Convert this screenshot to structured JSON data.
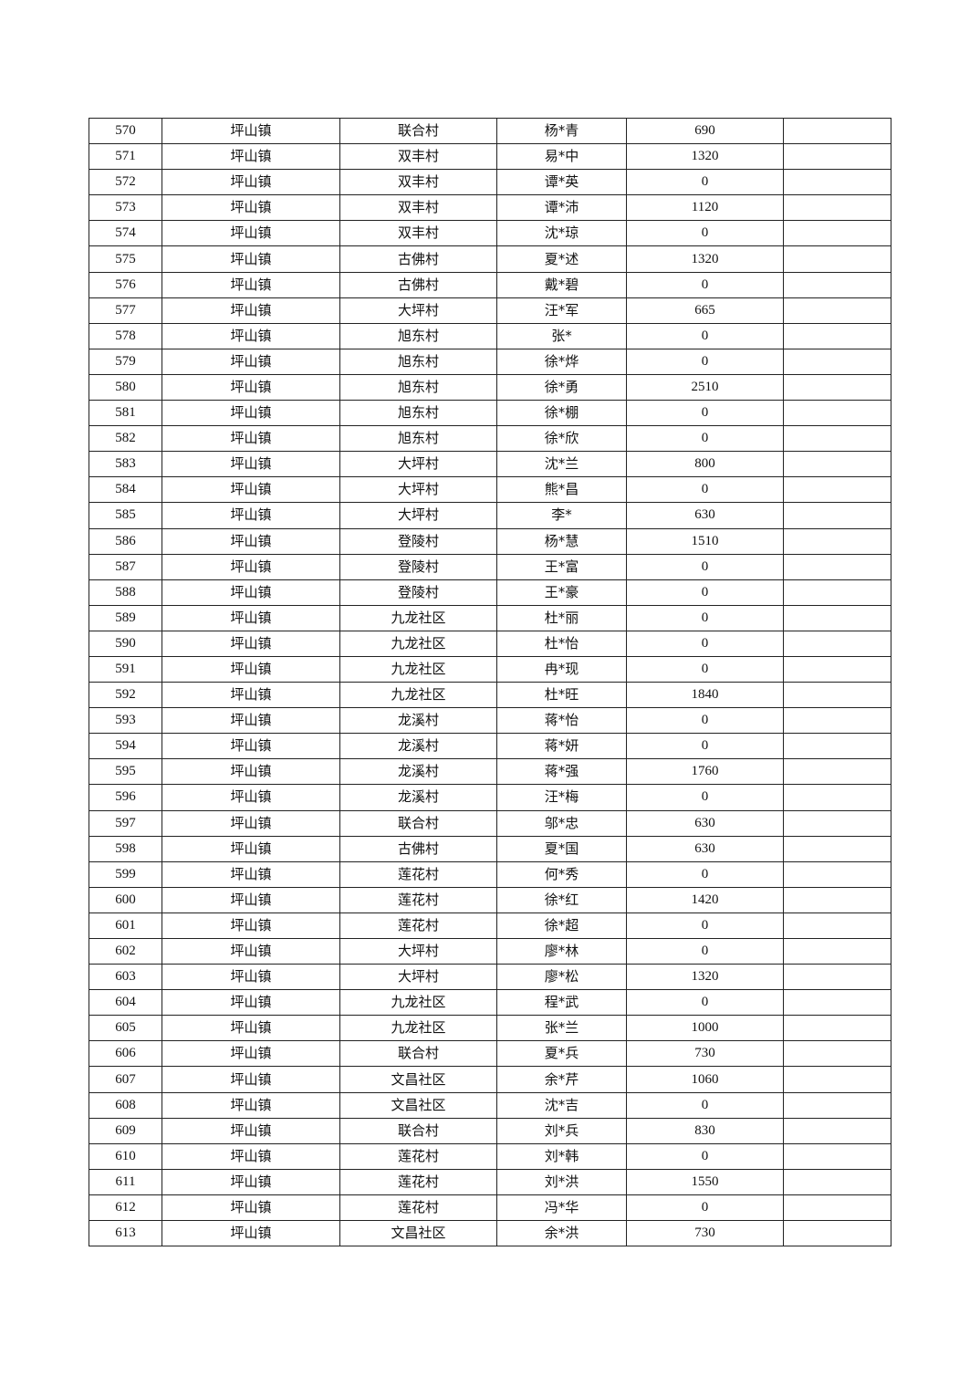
{
  "table": {
    "rows": [
      [
        "570",
        "坪山镇",
        "联合村",
        "杨*青",
        "690",
        ""
      ],
      [
        "571",
        "坪山镇",
        "双丰村",
        "易*中",
        "1320",
        ""
      ],
      [
        "572",
        "坪山镇",
        "双丰村",
        "谭*英",
        "0",
        ""
      ],
      [
        "573",
        "坪山镇",
        "双丰村",
        "谭*沛",
        "1120",
        ""
      ],
      [
        "574",
        "坪山镇",
        "双丰村",
        "沈*琼",
        "0",
        ""
      ],
      [
        "575",
        "坪山镇",
        "古佛村",
        "夏*述",
        "1320",
        ""
      ],
      [
        "576",
        "坪山镇",
        "古佛村",
        "戴*碧",
        "0",
        ""
      ],
      [
        "577",
        "坪山镇",
        "大坪村",
        "汪*军",
        "665",
        ""
      ],
      [
        "578",
        "坪山镇",
        "旭东村",
        "张*",
        "0",
        ""
      ],
      [
        "579",
        "坪山镇",
        "旭东村",
        "徐*烨",
        "0",
        ""
      ],
      [
        "580",
        "坪山镇",
        "旭东村",
        "徐*勇",
        "2510",
        ""
      ],
      [
        "581",
        "坪山镇",
        "旭东村",
        "徐*棚",
        "0",
        ""
      ],
      [
        "582",
        "坪山镇",
        "旭东村",
        "徐*欣",
        "0",
        ""
      ],
      [
        "583",
        "坪山镇",
        "大坪村",
        "沈*兰",
        "800",
        ""
      ],
      [
        "584",
        "坪山镇",
        "大坪村",
        "熊*昌",
        "0",
        ""
      ],
      [
        "585",
        "坪山镇",
        "大坪村",
        "李*",
        "630",
        ""
      ],
      [
        "586",
        "坪山镇",
        "登陵村",
        "杨*慧",
        "1510",
        ""
      ],
      [
        "587",
        "坪山镇",
        "登陵村",
        "王*富",
        "0",
        ""
      ],
      [
        "588",
        "坪山镇",
        "登陵村",
        "王*豪",
        "0",
        ""
      ],
      [
        "589",
        "坪山镇",
        "九龙社区",
        "杜*丽",
        "0",
        ""
      ],
      [
        "590",
        "坪山镇",
        "九龙社区",
        "杜*怡",
        "0",
        ""
      ],
      [
        "591",
        "坪山镇",
        "九龙社区",
        "冉*现",
        "0",
        ""
      ],
      [
        "592",
        "坪山镇",
        "九龙社区",
        "杜*旺",
        "1840",
        ""
      ],
      [
        "593",
        "坪山镇",
        "龙溪村",
        "蒋*怡",
        "0",
        ""
      ],
      [
        "594",
        "坪山镇",
        "龙溪村",
        "蒋*妍",
        "0",
        ""
      ],
      [
        "595",
        "坪山镇",
        "龙溪村",
        "蒋*强",
        "1760",
        ""
      ],
      [
        "596",
        "坪山镇",
        "龙溪村",
        "汪*梅",
        "0",
        ""
      ],
      [
        "597",
        "坪山镇",
        "联合村",
        "邬*忠",
        "630",
        ""
      ],
      [
        "598",
        "坪山镇",
        "古佛村",
        "夏*国",
        "630",
        ""
      ],
      [
        "599",
        "坪山镇",
        "莲花村",
        "何*秀",
        "0",
        ""
      ],
      [
        "600",
        "坪山镇",
        "莲花村",
        "徐*红",
        "1420",
        ""
      ],
      [
        "601",
        "坪山镇",
        "莲花村",
        "徐*超",
        "0",
        ""
      ],
      [
        "602",
        "坪山镇",
        "大坪村",
        "廖*林",
        "0",
        ""
      ],
      [
        "603",
        "坪山镇",
        "大坪村",
        "廖*松",
        "1320",
        ""
      ],
      [
        "604",
        "坪山镇",
        "九龙社区",
        "程*武",
        "0",
        ""
      ],
      [
        "605",
        "坪山镇",
        "九龙社区",
        "张*兰",
        "1000",
        ""
      ],
      [
        "606",
        "坪山镇",
        "联合村",
        "夏*兵",
        "730",
        ""
      ],
      [
        "607",
        "坪山镇",
        "文昌社区",
        "余*芹",
        "1060",
        ""
      ],
      [
        "608",
        "坪山镇",
        "文昌社区",
        "沈*吉",
        "0",
        ""
      ],
      [
        "609",
        "坪山镇",
        "联合村",
        "刘*兵",
        "830",
        ""
      ],
      [
        "610",
        "坪山镇",
        "莲花村",
        "刘*韩",
        "0",
        ""
      ],
      [
        "611",
        "坪山镇",
        "莲花村",
        "刘*洪",
        "1550",
        ""
      ],
      [
        "612",
        "坪山镇",
        "莲花村",
        "冯*华",
        "0",
        ""
      ],
      [
        "613",
        "坪山镇",
        "文昌社区",
        "余*洪",
        "730",
        ""
      ]
    ]
  }
}
